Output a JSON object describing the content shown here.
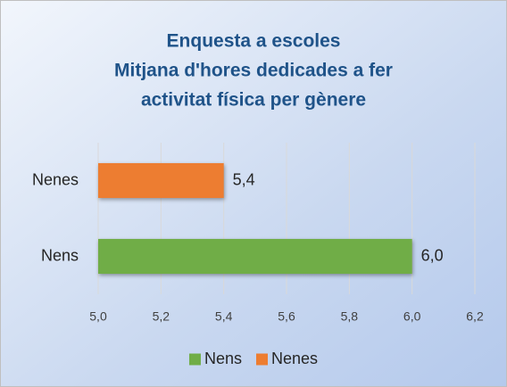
{
  "chart_data": {
    "type": "bar",
    "orientation": "horizontal",
    "title": [
      "Enquesta a escoles",
      "Mitjana d'hores dedicades a fer",
      "activitat física per gènere"
    ],
    "categories": [
      "Nens",
      "Nenes"
    ],
    "series": [
      {
        "name": "Nens",
        "color": "#70ad47",
        "values": [
          6.0,
          null
        ],
        "value_labels": [
          "6,0",
          null
        ]
      },
      {
        "name": "Nenes",
        "color": "#ed7d31",
        "values": [
          null,
          5.4
        ],
        "value_labels": [
          null,
          "5,4"
        ]
      }
    ],
    "xlim": [
      5.0,
      6.2
    ],
    "xticks": [
      {
        "value": 5.0,
        "label": "5,0"
      },
      {
        "value": 5.2,
        "label": "5,2"
      },
      {
        "value": 5.4,
        "label": "5,4"
      },
      {
        "value": 5.6,
        "label": "5,6"
      },
      {
        "value": 5.8,
        "label": "5,8"
      },
      {
        "value": 6.0,
        "label": "6,0"
      },
      {
        "value": 6.2,
        "label": "6,2"
      }
    ],
    "grid": true,
    "legend": "bottom"
  }
}
